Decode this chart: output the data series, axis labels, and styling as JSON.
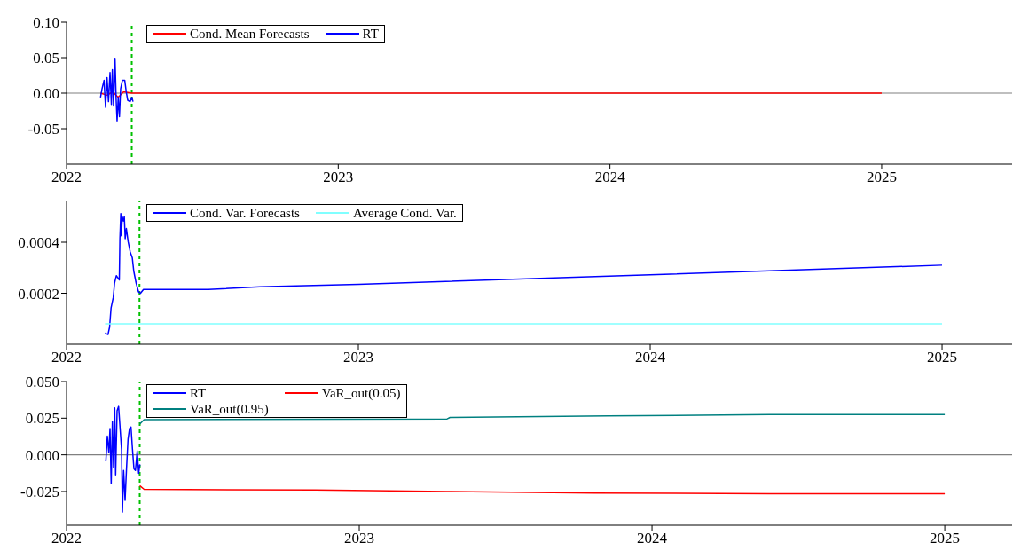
{
  "chart_data": [
    {
      "type": "line",
      "xlim": [
        2022,
        2025.48
      ],
      "xticks": [
        2022,
        2023,
        2024,
        2025
      ],
      "ylim": [
        -0.1,
        0.1
      ],
      "yticks": [
        {
          "value": 0.1,
          "label": "0.10"
        },
        0.05,
        {
          "value": 0,
          "label": "0.00"
        },
        -0.05
      ],
      "legend": "top left",
      "series": [
        {
          "name": "Cond. Mean Forecasts",
          "color": "#ff0000",
          "x": [
            2022.125,
            2022.15,
            2022.17,
            2022.19,
            2022.21,
            2022.24,
            2025.0
          ],
          "values": [
            0,
            -0.003,
            0.002,
            -0.006,
            0.002,
            0,
            0
          ]
        },
        {
          "name": "RT",
          "color": "#0000ff",
          "x": [
            2022.125,
            2022.1305,
            2022.138,
            2022.1436,
            2022.149,
            2022.1544,
            2022.16,
            2022.165,
            2022.1686,
            2022.173,
            2022.1784,
            2022.1827,
            2022.186,
            2022.1903,
            2022.1947,
            2022.199,
            2022.2055,
            2022.2143,
            2022.2197,
            2022.2251,
            2022.2339,
            2022.2404,
            2022.2447
          ],
          "values": [
            -0.006,
            0.006,
            0.018,
            -0.02,
            0.022,
            -0.012,
            0.029,
            -0.016,
            0.033,
            -0.018,
            0.049,
            -0.01,
            -0.039,
            -0.006,
            -0.033,
            0.006,
            0.018,
            0.018,
            0.002,
            -0.01,
            -0.012,
            -0.006,
            -0.012
          ]
        }
      ],
      "ref_lines": [
        {
          "axis": "y",
          "value": 0,
          "color": "#808080",
          "line_style": "solid"
        },
        {
          "axis": "x",
          "value": 2022.24,
          "color": "#00c000",
          "line_style": "dashed"
        }
      ]
    },
    {
      "type": "line",
      "xlim": [
        2022,
        2025.24
      ],
      "xticks": [
        2022,
        2023,
        2024,
        2025
      ],
      "ylim": [
        0,
        0.00056
      ],
      "yticks": [
        0.0002,
        0.0004
      ],
      "legend": "top left",
      "series": [
        {
          "name": "Cond. Var. Forecasts",
          "color": "#0000ff",
          "x": [
            2022.132,
            2022.142,
            2022.1475,
            2022.1525,
            2022.16,
            2022.1646,
            2022.1707,
            2022.1808,
            2022.1828,
            2022.1859,
            2022.1879,
            2022.1909,
            2022.1949,
            2022.198,
            2022.201,
            2022.205,
            2022.2111,
            2022.2182,
            2022.2253,
            2022.2303,
            2022.2384,
            2022.2465,
            2022.2535,
            2022.2636,
            2022.4858,
            2022.6626,
            2023.0,
            2024.0,
            2025.0
          ],
          "values": [
            4.4e-05,
            3.8e-05,
            6.7e-05,
            0.000142,
            0.000183,
            0.00024,
            0.000269,
            0.000252,
            0.000414,
            0.000512,
            0.000425,
            0.0005,
            0.000483,
            0.0005,
            0.000414,
            0.000454,
            0.000402,
            0.000362,
            0.000339,
            0.000287,
            0.00024,
            0.000206,
            0.0002,
            0.000215,
            0.000215,
            0.000225,
            0.000235,
            0.000272,
            0.00031
          ]
        },
        {
          "name": "Average Cond. Var.",
          "color": "#80ffff",
          "x": [
            2022.132,
            2025.0
          ],
          "values": [
            8e-05,
            8e-05
          ]
        }
      ],
      "ref_lines": [
        {
          "axis": "x",
          "value": 2022.25,
          "color": "#00c000",
          "line_style": "dashed"
        }
      ]
    },
    {
      "type": "line",
      "xlim": [
        2022,
        2025.23
      ],
      "xticks": [
        2022,
        2023,
        2024,
        2025
      ],
      "ylim": [
        -0.048,
        0.05
      ],
      "yticks": [
        {
          "value": 0.05,
          "label": "0.050"
        },
        0.025,
        {
          "value": 0,
          "label": "0.000"
        },
        -0.025
      ],
      "legend": "top left",
      "series": [
        {
          "name": "RT",
          "color": "#0000ff",
          "x": [
            2022.1343,
            2022.1394,
            2022.1444,
            2022.1485,
            2022.1525,
            2022.1566,
            2022.1606,
            2022.1646,
            2022.1677,
            2022.1727,
            2022.1778,
            2022.1879,
            2022.1909,
            2022.195,
            2022.2,
            2022.2051,
            2022.2101,
            2022.2152,
            2022.2202,
            2022.2253,
            2022.2303,
            2022.2354,
            2022.2414,
            2022.2465,
            2022.2505
          ],
          "values": [
            -0.0045,
            0.0128,
            0.0016,
            0.0179,
            -0.0197,
            0.023,
            -0.0085,
            0.032,
            -0.0136,
            0.03,
            0.033,
            0.0037,
            -0.039,
            -0.0106,
            -0.031,
            -0.0085,
            0.0108,
            0.0179,
            0.019,
            0.0037,
            -0.0096,
            -0.0106,
            0.0026,
            -0.0126,
            -0.0065
          ]
        },
        {
          "name": "VaR_out(0.05)",
          "color": "#ff0000",
          "x": [
            2022.25,
            2022.265,
            2022.85,
            2023.3,
            2023.8,
            2024.4,
            2025.0
          ],
          "values": [
            -0.021,
            -0.0235,
            -0.024,
            -0.025,
            -0.026,
            -0.0265,
            -0.0265
          ]
        },
        {
          "name": "VaR_out(0.95)",
          "color": "#008080",
          "x": [
            2022.25,
            2022.265,
            2023.3,
            2023.31,
            2023.85,
            2024.4,
            2025.0
          ],
          "values": [
            0.021,
            0.024,
            0.0245,
            0.0255,
            0.0265,
            0.0275,
            0.0275
          ]
        }
      ],
      "ref_lines": [
        {
          "axis": "y",
          "value": 0,
          "color": "#808080",
          "line_style": "solid"
        },
        {
          "axis": "x",
          "value": 2022.25,
          "color": "#00c000",
          "line_style": "dashed"
        }
      ]
    }
  ]
}
